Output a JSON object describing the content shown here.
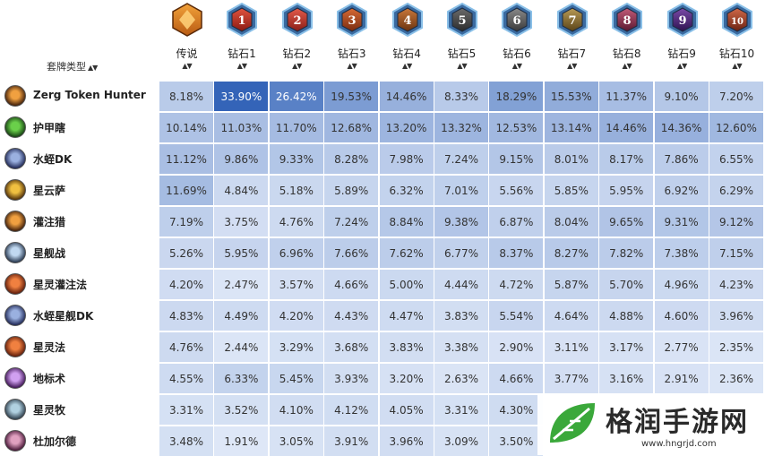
{
  "table": {
    "deck_type_header": "套牌类型",
    "sort_arrows": "▲▼",
    "columns": [
      {
        "label": "传说",
        "badge": "",
        "badge_icon": "legend-crest-icon",
        "colors": [
          "#f2a23a",
          "#b85a12"
        ]
      },
      {
        "label": "钻石1",
        "badge": "1",
        "badge_icon": "diamond-rank-badge-icon",
        "colors": [
          "#e0533f",
          "#8b1a12"
        ]
      },
      {
        "label": "钻石2",
        "badge": "2",
        "badge_icon": "diamond-rank-badge-icon",
        "colors": [
          "#e35a4a",
          "#8a1e18"
        ]
      },
      {
        "label": "钻石3",
        "badge": "3",
        "badge_icon": "diamond-rank-badge-icon",
        "colors": [
          "#d66a35",
          "#7a2c10"
        ]
      },
      {
        "label": "钻石4",
        "badge": "4",
        "badge_icon": "diamond-rank-badge-icon",
        "colors": [
          "#c9773a",
          "#6a3310"
        ]
      },
      {
        "label": "钻石5",
        "badge": "5",
        "badge_icon": "diamond-rank-badge-icon",
        "colors": [
          "#6b6b6b",
          "#2c2c2c"
        ]
      },
      {
        "label": "钻石6",
        "badge": "6",
        "badge_icon": "diamond-rank-badge-icon",
        "colors": [
          "#8a8a8a",
          "#3a3a3a"
        ]
      },
      {
        "label": "钻石7",
        "badge": "7",
        "badge_icon": "diamond-rank-badge-icon",
        "colors": [
          "#b89a55",
          "#5a4418"
        ]
      },
      {
        "label": "钻石8",
        "badge": "8",
        "badge_icon": "diamond-rank-badge-icon",
        "colors": [
          "#c25a78",
          "#5a1830"
        ]
      },
      {
        "label": "钻石9",
        "badge": "9",
        "badge_icon": "diamond-rank-badge-icon",
        "colors": [
          "#7a4aa8",
          "#2e1250"
        ]
      },
      {
        "label": "钻石10",
        "badge": "10",
        "badge_icon": "diamond-rank-badge-icon",
        "colors": [
          "#d06848",
          "#6a2212"
        ]
      }
    ],
    "rows": [
      {
        "name": "Zerg Token Hunter",
        "icon": "hunter-class-icon",
        "icon_colors": [
          "#f0a040",
          "#3a1a08"
        ],
        "values": [
          "8.18%",
          "33.90%",
          "26.42%",
          "19.53%",
          "14.46%",
          "8.33%",
          "18.29%",
          "15.53%",
          "11.37%",
          "9.10%",
          "7.20%"
        ],
        "levels": [
          8.18,
          33.9,
          26.42,
          19.53,
          14.46,
          8.33,
          18.29,
          15.53,
          11.37,
          9.1,
          7.2
        ]
      },
      {
        "name": "护甲瞎",
        "icon": "demon-hunter-class-icon",
        "icon_colors": [
          "#6ad04a",
          "#123a10"
        ],
        "values": [
          "10.14%",
          "11.03%",
          "11.70%",
          "12.68%",
          "13.20%",
          "13.32%",
          "12.53%",
          "13.14%",
          "14.46%",
          "14.36%",
          "12.60%"
        ],
        "levels": [
          10.14,
          11.03,
          11.7,
          12.68,
          13.2,
          13.32,
          12.53,
          13.14,
          14.46,
          14.36,
          12.6
        ]
      },
      {
        "name": "水蛭DK",
        "icon": "death-knight-class-icon",
        "icon_colors": [
          "#9ab0e0",
          "#1a2250"
        ],
        "values": [
          "11.12%",
          "9.86%",
          "9.33%",
          "8.28%",
          "7.98%",
          "7.24%",
          "9.15%",
          "8.01%",
          "8.17%",
          "7.86%",
          "6.55%"
        ],
        "levels": [
          11.12,
          9.86,
          9.33,
          8.28,
          7.98,
          7.24,
          9.15,
          8.01,
          8.17,
          7.86,
          6.55
        ]
      },
      {
        "name": "星云萨",
        "icon": "shaman-class-icon",
        "icon_colors": [
          "#f0c040",
          "#4a2a08"
        ],
        "values": [
          "11.69%",
          "4.84%",
          "5.18%",
          "5.89%",
          "6.32%",
          "7.01%",
          "5.56%",
          "5.85%",
          "5.95%",
          "6.92%",
          "6.29%"
        ],
        "levels": [
          11.69,
          4.84,
          5.18,
          5.89,
          6.32,
          7.01,
          5.56,
          5.85,
          5.95,
          6.92,
          6.29
        ]
      },
      {
        "name": "灌注猎",
        "icon": "hunter-class-icon",
        "icon_colors": [
          "#f0a040",
          "#3a1a08"
        ],
        "values": [
          "7.19%",
          "3.75%",
          "4.76%",
          "7.24%",
          "8.84%",
          "9.38%",
          "6.87%",
          "8.04%",
          "9.65%",
          "9.31%",
          "9.12%"
        ],
        "levels": [
          7.19,
          3.75,
          4.76,
          7.24,
          8.84,
          9.38,
          6.87,
          8.04,
          9.65,
          9.31,
          9.12
        ]
      },
      {
        "name": "星舰战",
        "icon": "warrior-class-icon",
        "icon_colors": [
          "#c0d8f0",
          "#203048"
        ],
        "values": [
          "5.26%",
          "5.95%",
          "6.96%",
          "7.66%",
          "7.62%",
          "6.77%",
          "8.37%",
          "8.27%",
          "7.82%",
          "7.38%",
          "7.15%"
        ],
        "levels": [
          5.26,
          5.95,
          6.96,
          7.66,
          7.62,
          6.77,
          8.37,
          8.27,
          7.82,
          7.38,
          7.15
        ]
      },
      {
        "name": "星灵灌注法",
        "icon": "mage-class-icon",
        "icon_colors": [
          "#f08040",
          "#5a1808"
        ],
        "values": [
          "4.20%",
          "2.47%",
          "3.57%",
          "4.66%",
          "5.00%",
          "4.44%",
          "4.72%",
          "5.87%",
          "5.70%",
          "4.96%",
          "4.23%"
        ],
        "levels": [
          4.2,
          2.47,
          3.57,
          4.66,
          5.0,
          4.44,
          4.72,
          5.87,
          5.7,
          4.96,
          4.23
        ]
      },
      {
        "name": "水蛭星舰DK",
        "icon": "death-knight-class-icon",
        "icon_colors": [
          "#9ab0e0",
          "#1a2250"
        ],
        "values": [
          "4.83%",
          "4.49%",
          "4.20%",
          "4.43%",
          "4.47%",
          "3.83%",
          "5.54%",
          "4.64%",
          "4.88%",
          "4.60%",
          "3.96%"
        ],
        "levels": [
          4.83,
          4.49,
          4.2,
          4.43,
          4.47,
          3.83,
          5.54,
          4.64,
          4.88,
          4.6,
          3.96
        ]
      },
      {
        "name": "星灵法",
        "icon": "mage-class-icon",
        "icon_colors": [
          "#f08040",
          "#5a1808"
        ],
        "values": [
          "4.76%",
          "2.44%",
          "3.29%",
          "3.68%",
          "3.83%",
          "3.38%",
          "2.90%",
          "3.11%",
          "3.17%",
          "2.77%",
          "2.35%"
        ],
        "levels": [
          4.76,
          2.44,
          3.29,
          3.68,
          3.83,
          3.38,
          2.9,
          3.11,
          3.17,
          2.77,
          2.35
        ]
      },
      {
        "name": "地标术",
        "icon": "warlock-class-icon",
        "icon_colors": [
          "#d0a0f0",
          "#3a1050"
        ],
        "values": [
          "4.55%",
          "6.33%",
          "5.45%",
          "3.93%",
          "3.20%",
          "2.63%",
          "4.66%",
          "3.77%",
          "3.16%",
          "2.91%",
          "2.36%"
        ],
        "levels": [
          4.55,
          6.33,
          5.45,
          3.93,
          3.2,
          2.63,
          4.66,
          3.77,
          3.16,
          2.91,
          2.36
        ]
      },
      {
        "name": "星灵牧",
        "icon": "priest-class-icon",
        "icon_colors": [
          "#b0d0e0",
          "#2a3a48"
        ],
        "values": [
          "3.31%",
          "3.52%",
          "4.10%",
          "4.12%",
          "4.05%",
          "3.31%",
          "4.30%",
          "",
          "",
          "",
          ""
        ],
        "levels": [
          3.31,
          3.52,
          4.1,
          4.12,
          4.05,
          3.31,
          4.3,
          0,
          0,
          0,
          0
        ]
      },
      {
        "name": "杜加尔德",
        "icon": "rogue-class-icon",
        "icon_colors": [
          "#e0a0c0",
          "#401030"
        ],
        "values": [
          "3.48%",
          "1.91%",
          "3.05%",
          "3.91%",
          "3.96%",
          "3.09%",
          "3.50%",
          "",
          "",
          "",
          ""
        ],
        "levels": [
          3.48,
          1.91,
          3.05,
          3.91,
          3.96,
          3.09,
          3.5,
          0,
          0,
          0,
          0
        ]
      }
    ]
  },
  "watermark": {
    "text": "格润手游网",
    "url": "www.hngrjd.com",
    "logo_icon": "green-leaf-logo-icon"
  }
}
